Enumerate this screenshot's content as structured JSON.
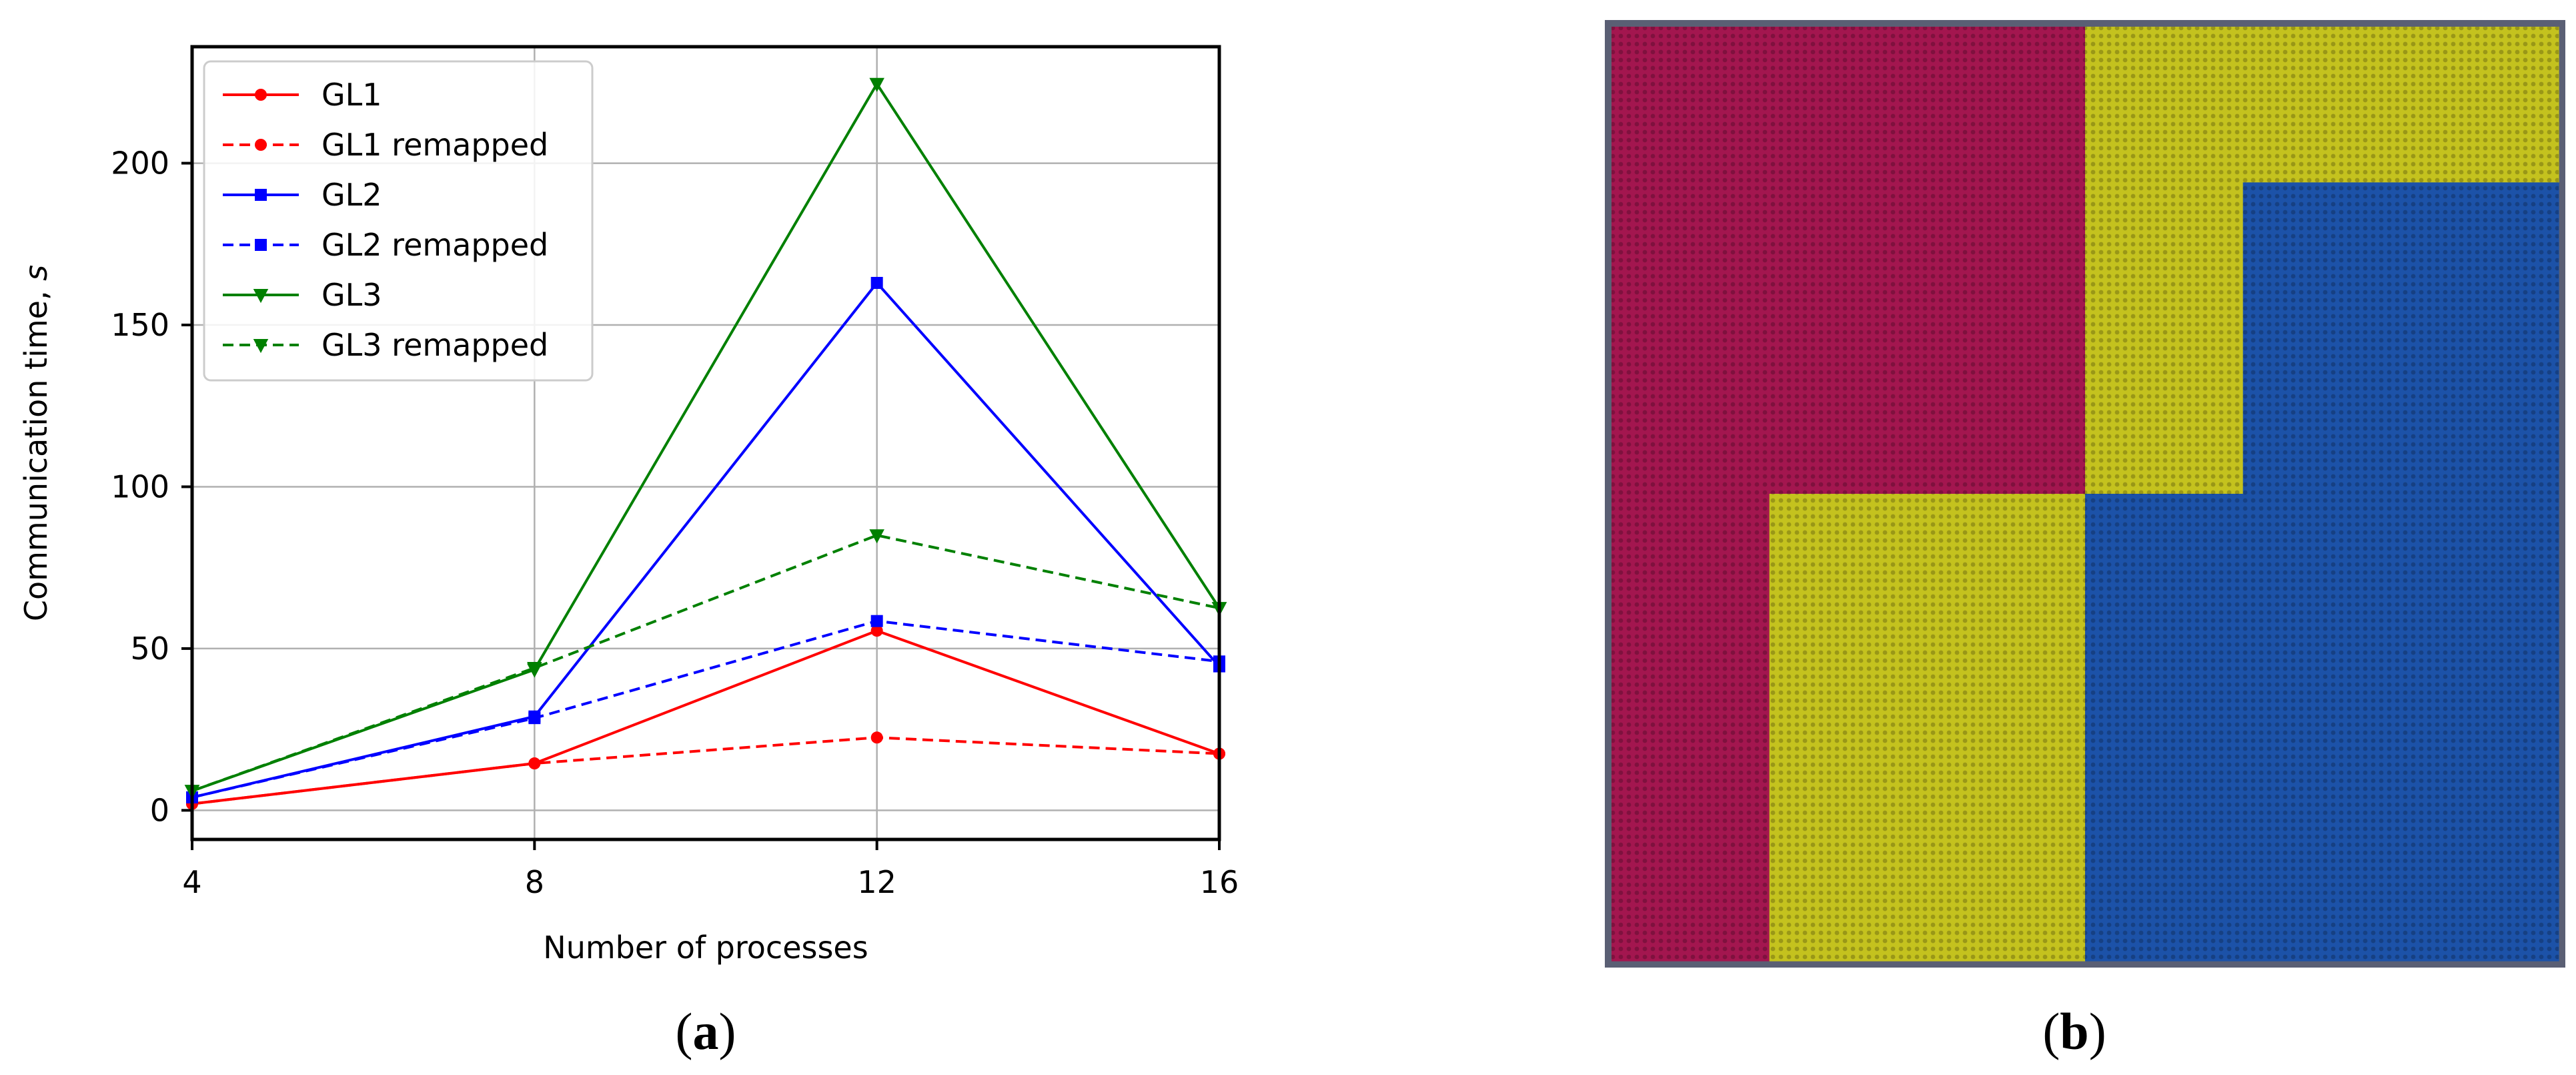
{
  "chart_data": [
    {
      "type": "line",
      "xlabel": "Number of processes",
      "ylabel": "Communication time, s",
      "x": [
        4,
        8,
        12,
        16
      ],
      "xlim": [
        4,
        16
      ],
      "ylim": [
        -9,
        236
      ],
      "xticks": [
        4,
        8,
        12,
        16
      ],
      "yticks": [
        0,
        50,
        100,
        150,
        200
      ],
      "grid": true,
      "legend_position": "top-left",
      "series": [
        {
          "name": "GL1",
          "values": [
            2,
            14.5,
            55.5,
            17.5
          ],
          "color": "#ff0000",
          "dash": "solid",
          "marker": "circle"
        },
        {
          "name": "GL1 remapped",
          "values": [
            2,
            14.5,
            22.5,
            17.5
          ],
          "color": "#ff0000",
          "dash": "dashed",
          "marker": "circle"
        },
        {
          "name": "GL2",
          "values": [
            4,
            29,
            163,
            44.5
          ],
          "color": "#0000ff",
          "dash": "solid",
          "marker": "square"
        },
        {
          "name": "GL2 remapped",
          "values": [
            4,
            28.5,
            58.5,
            46
          ],
          "color": "#0000ff",
          "dash": "dashed",
          "marker": "square"
        },
        {
          "name": "GL3",
          "values": [
            6,
            43.5,
            224.5,
            62.5
          ],
          "color": "#008000",
          "dash": "solid",
          "marker": "triangle-down"
        },
        {
          "name": "GL3 remapped",
          "values": [
            6,
            44,
            85,
            62.5
          ],
          "color": "#008000",
          "dash": "dashed",
          "marker": "triangle-down"
        }
      ],
      "caption_label": "a"
    },
    {
      "type": "heatmap",
      "caption_label": "b",
      "frame_color": "#5a5f74",
      "palette": {
        "magenta": "#a3164f",
        "yellow": "#c4c21e",
        "blue": "#1c52a8"
      },
      "rows": [
        [
          "magenta",
          "magenta",
          "magenta",
          "yellow",
          "yellow",
          "yellow"
        ],
        [
          "magenta",
          "magenta",
          "magenta",
          "yellow",
          "blue",
          "blue"
        ],
        [
          "magenta",
          "magenta",
          "magenta",
          "yellow",
          "blue",
          "blue"
        ],
        [
          "magenta",
          "yellow",
          "yellow",
          "blue",
          "blue",
          "blue"
        ],
        [
          "magenta",
          "yellow",
          "yellow",
          "blue",
          "blue",
          "blue"
        ],
        [
          "magenta",
          "yellow",
          "yellow",
          "blue",
          "blue",
          "blue"
        ]
      ]
    }
  ]
}
